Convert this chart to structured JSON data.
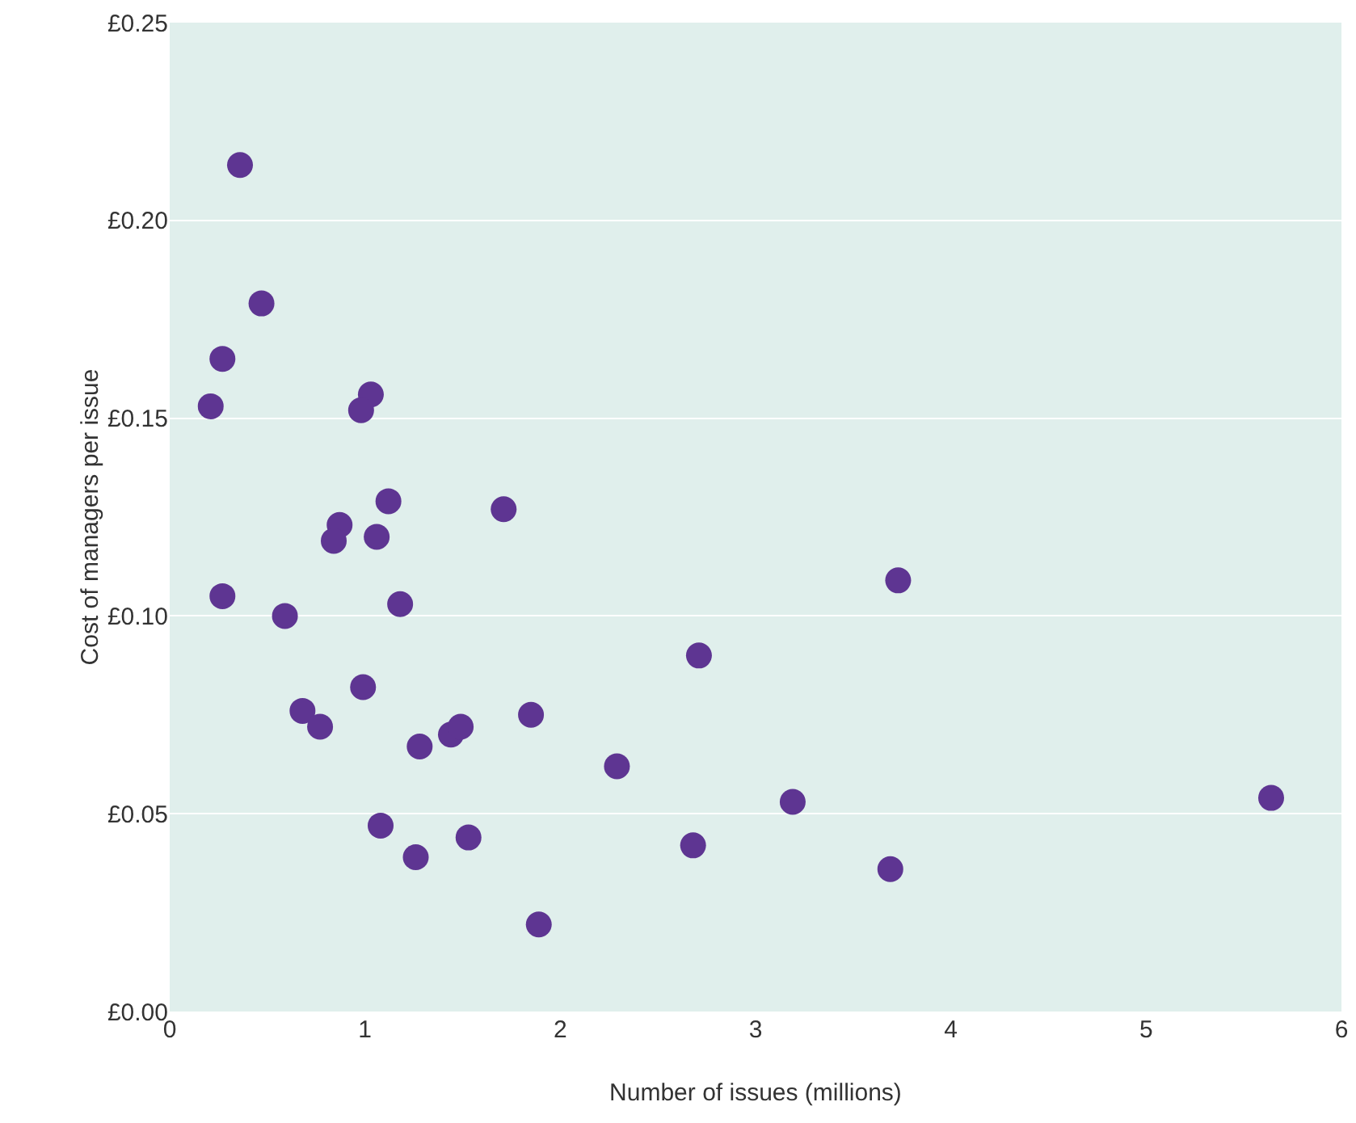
{
  "chart_data": {
    "type": "scatter",
    "xlabel": "Number of issues (millions)",
    "ylabel": "Cost of managers per issue",
    "x": [
      0.36,
      0.47,
      0.27,
      0.21,
      1.03,
      0.98,
      1.12,
      0.87,
      0.84,
      1.06,
      1.71,
      0.27,
      0.59,
      1.18,
      3.73,
      2.71,
      0.68,
      0.77,
      0.99,
      1.28,
      1.44,
      1.49,
      1.85,
      2.29,
      3.19,
      5.64,
      1.08,
      1.53,
      1.26,
      2.68,
      3.69,
      1.89
    ],
    "values": [
      0.214,
      0.179,
      0.165,
      0.153,
      0.156,
      0.152,
      0.129,
      0.123,
      0.119,
      0.12,
      0.127,
      0.105,
      0.1,
      0.103,
      0.109,
      0.09,
      0.076,
      0.072,
      0.082,
      0.067,
      0.07,
      0.072,
      0.075,
      0.062,
      0.053,
      0.054,
      0.047,
      0.044,
      0.039,
      0.042,
      0.036,
      0.022
    ],
    "color": "#5e3592",
    "marker": "circle",
    "xlim": [
      0,
      6
    ],
    "xticks": [
      0,
      1,
      2,
      3,
      4,
      5,
      6
    ],
    "ylim": [
      0,
      0.25
    ],
    "yticks": [
      {
        "value": 0,
        "label": "£0.00"
      },
      {
        "value": 0.05,
        "label": "£0.05"
      },
      {
        "value": 0.1,
        "label": "£0.10"
      },
      {
        "value": 0.15,
        "label": "£0.15"
      },
      {
        "value": 0.2,
        "label": "£0.20"
      },
      {
        "value": 0.25,
        "label": "£0.25"
      }
    ],
    "grid": "y"
  }
}
